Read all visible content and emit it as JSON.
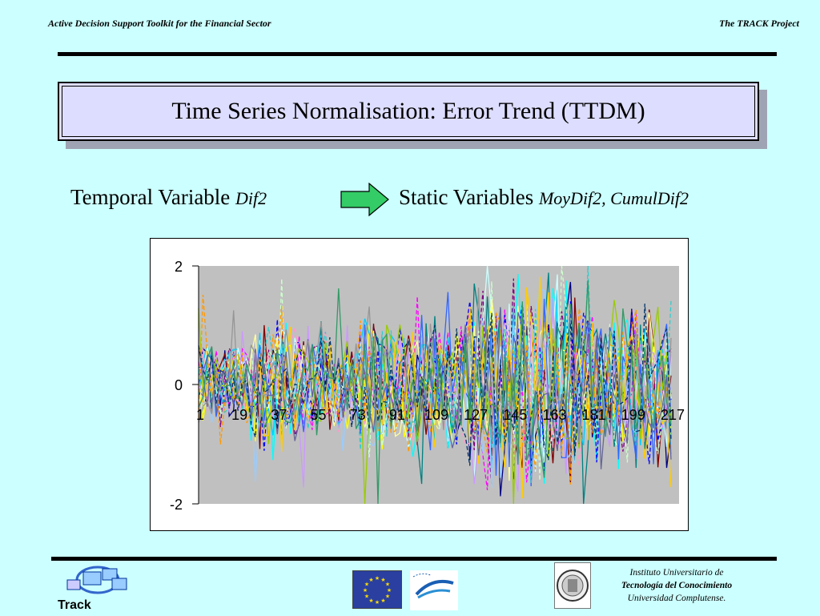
{
  "header": {
    "left_text": "Active Decision Support Toolkit for the Financial Sector",
    "right_text": "The TRACK Project"
  },
  "slide": {
    "title": "Time Series Normalisation: Error Trend (TTDM)",
    "temporal_label": "Temporal Variable",
    "temporal_var": "Dif2",
    "static_label": "Static Variables",
    "static_vars": "MoyDif2, CumulDif2",
    "arrow_color": "#33cc66"
  },
  "chart_data": {
    "type": "line",
    "title": "",
    "xlabel": "",
    "ylabel": "",
    "x_tick_labels": [
      "1",
      "19",
      "37",
      "55",
      "73",
      "91",
      "109",
      "127",
      "145",
      "163",
      "181",
      "199",
      "217"
    ],
    "y_tick_labels": [
      "2",
      "0",
      "-2"
    ],
    "ylim": [
      -2,
      2
    ],
    "x_range": [
      1,
      217
    ],
    "plot_background": "#c0c0c0",
    "series_colors": [
      "#000080",
      "#ff00ff",
      "#ffff00",
      "#00ffff",
      "#800080",
      "#800000",
      "#008080",
      "#0000ff",
      "#00ccff",
      "#ccffff",
      "#ccffcc",
      "#ffff99",
      "#99ccff",
      "#ff99cc",
      "#cc99ff",
      "#3366ff",
      "#33cccc",
      "#99cc00",
      "#ffcc00",
      "#ff9900",
      "#666699",
      "#969696",
      "#003366",
      "#339966"
    ],
    "series_count": 24,
    "note_values": "Many overlapping noisy series fluctuating mostly between -1 and 1, clipped at ±2"
  },
  "footer": {
    "track_label": "Track",
    "institute_line1": "Instituto  Universitario de",
    "institute_line2": "Tecnología del  Conocimiento",
    "institute_line3": "Universidad Complutense."
  }
}
